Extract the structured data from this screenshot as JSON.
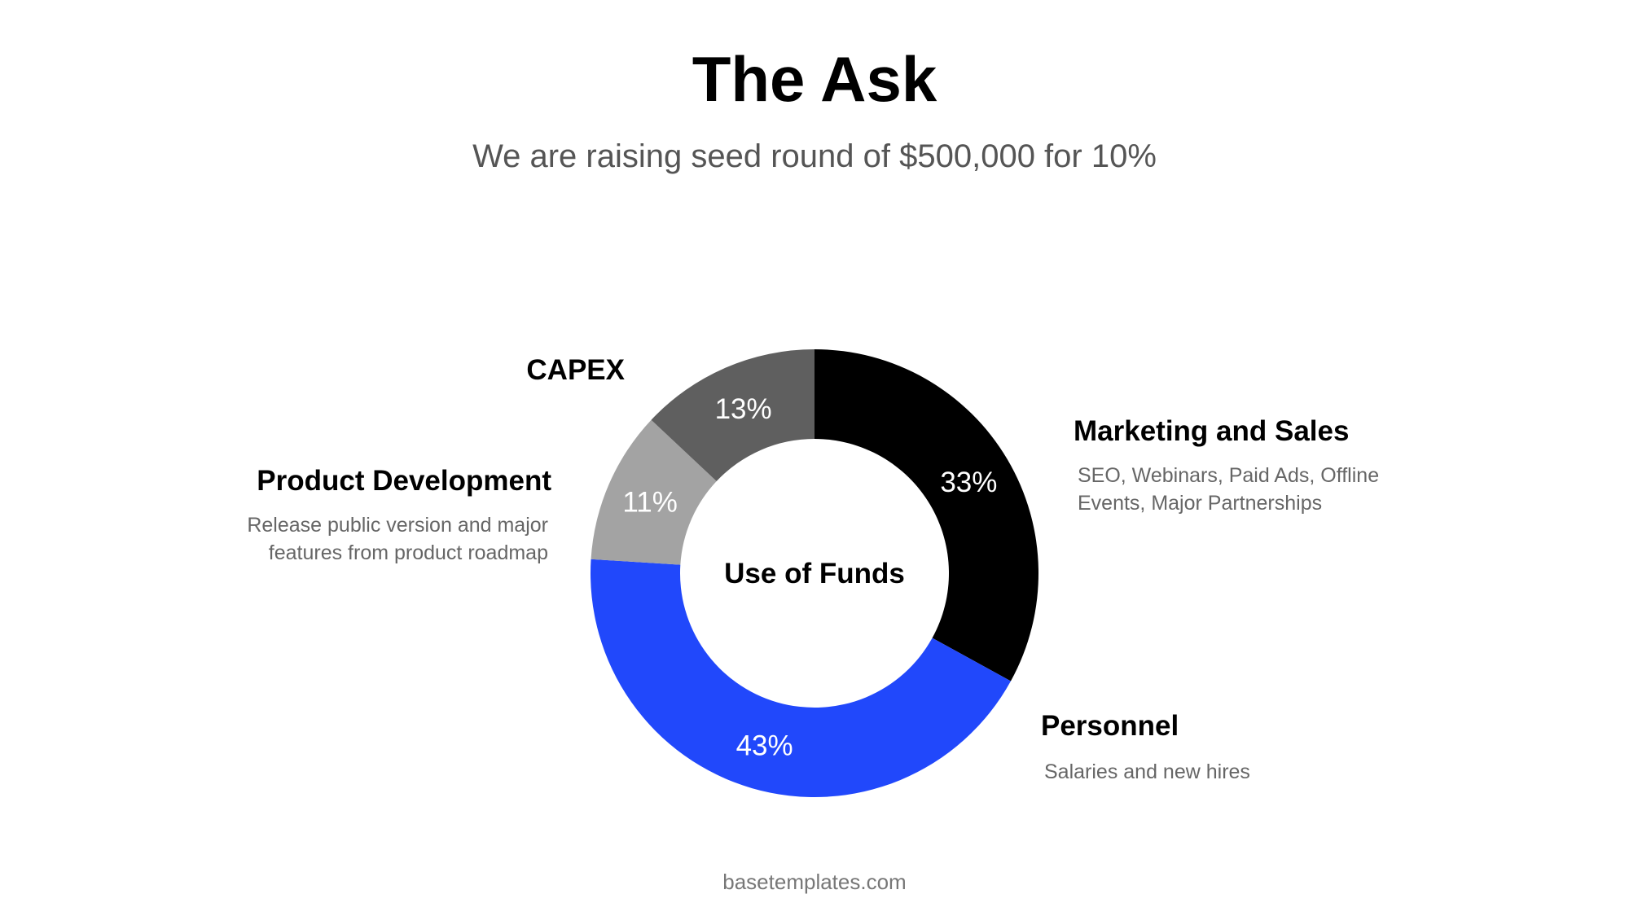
{
  "title": "The Ask",
  "subtitle": "We are raising seed round of $500,000 for 10%",
  "footer": "basetemplates.com",
  "chart_data": {
    "type": "pie",
    "variant": "donut",
    "center_label": "Use of Funds",
    "categories": [
      "Marketing and Sales",
      "Personnel",
      "Product Development",
      "CAPEX"
    ],
    "values": [
      33,
      43,
      11,
      13
    ],
    "value_labels": [
      "33%",
      "43%",
      "11%",
      "13%"
    ],
    "descriptions": [
      "SEO, Webinars, Paid Ads, Offline\nEvents, Major Partnerships",
      "Salaries and new hires",
      "Release public version and major\nfeatures from product roadmap",
      ""
    ],
    "colors": [
      "#000000",
      "#2148FB",
      "#A3A3A3",
      "#5F5F5F"
    ],
    "start": "top",
    "direction": "clockwise"
  }
}
